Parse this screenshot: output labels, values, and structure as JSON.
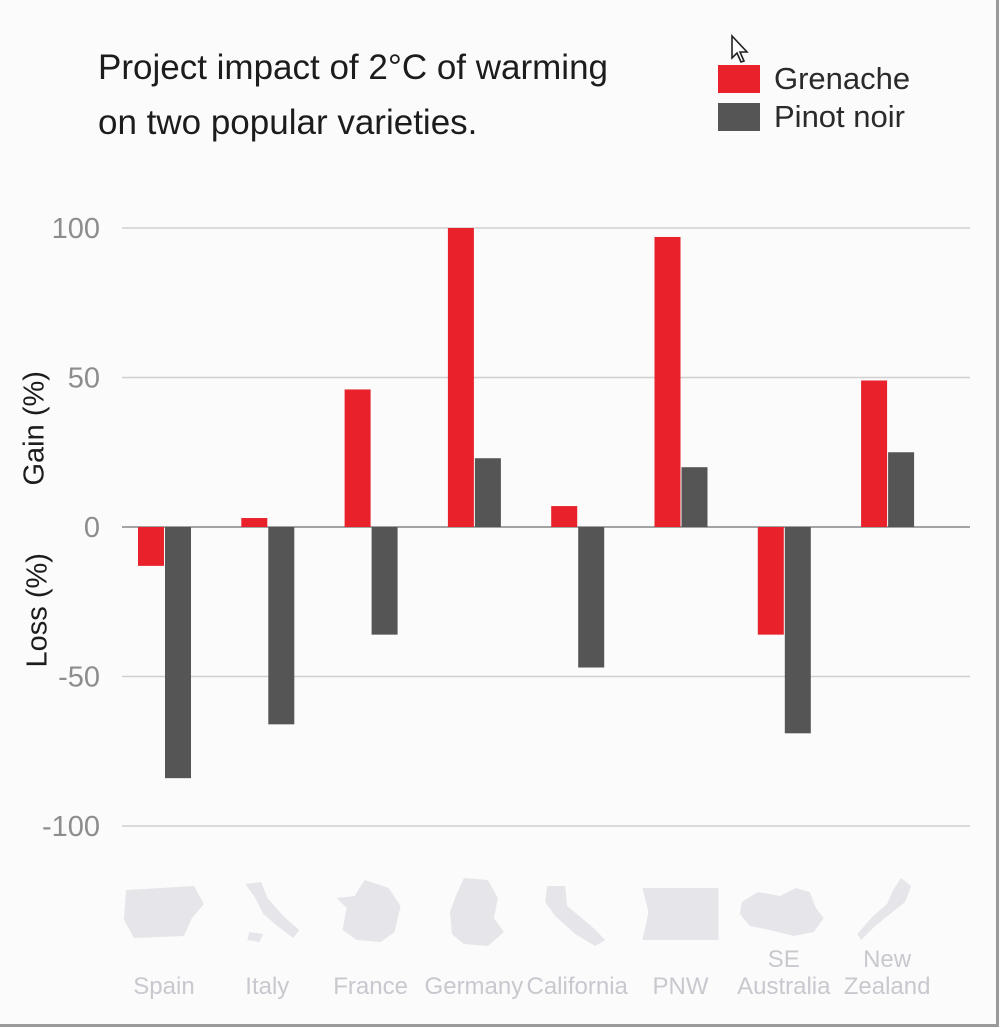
{
  "chart_data": {
    "type": "bar",
    "title": "Project impact of 2°C of warming on two popular varieties.",
    "ylabel_top": "Gain (%)",
    "ylabel_bottom": "Loss (%)",
    "ylim": [
      -100,
      100
    ],
    "yticks": [
      100,
      50,
      0,
      -50,
      -100
    ],
    "grid": true,
    "legend_position": "top-right",
    "categories": [
      [
        "Spain"
      ],
      [
        "Italy"
      ],
      [
        "France"
      ],
      [
        "Germany"
      ],
      [
        "California"
      ],
      [
        "PNW"
      ],
      [
        "SE",
        "Australia"
      ],
      [
        "New",
        "Zealand"
      ]
    ],
    "series": [
      {
        "name": "Grenache",
        "color": "#e8212a",
        "values": [
          -13,
          3,
          46,
          100,
          7,
          97,
          -36,
          49
        ]
      },
      {
        "name": "Pinot noir",
        "color": "#555555",
        "values": [
          -84,
          -66,
          -36,
          23,
          -47,
          20,
          -69,
          25
        ]
      }
    ],
    "icons": [
      "spain-map-icon",
      "italy-map-icon",
      "france-map-icon",
      "germany-map-icon",
      "california-map-icon",
      "pnw-map-icon",
      "se-australia-map-icon",
      "new-zealand-map-icon"
    ]
  }
}
